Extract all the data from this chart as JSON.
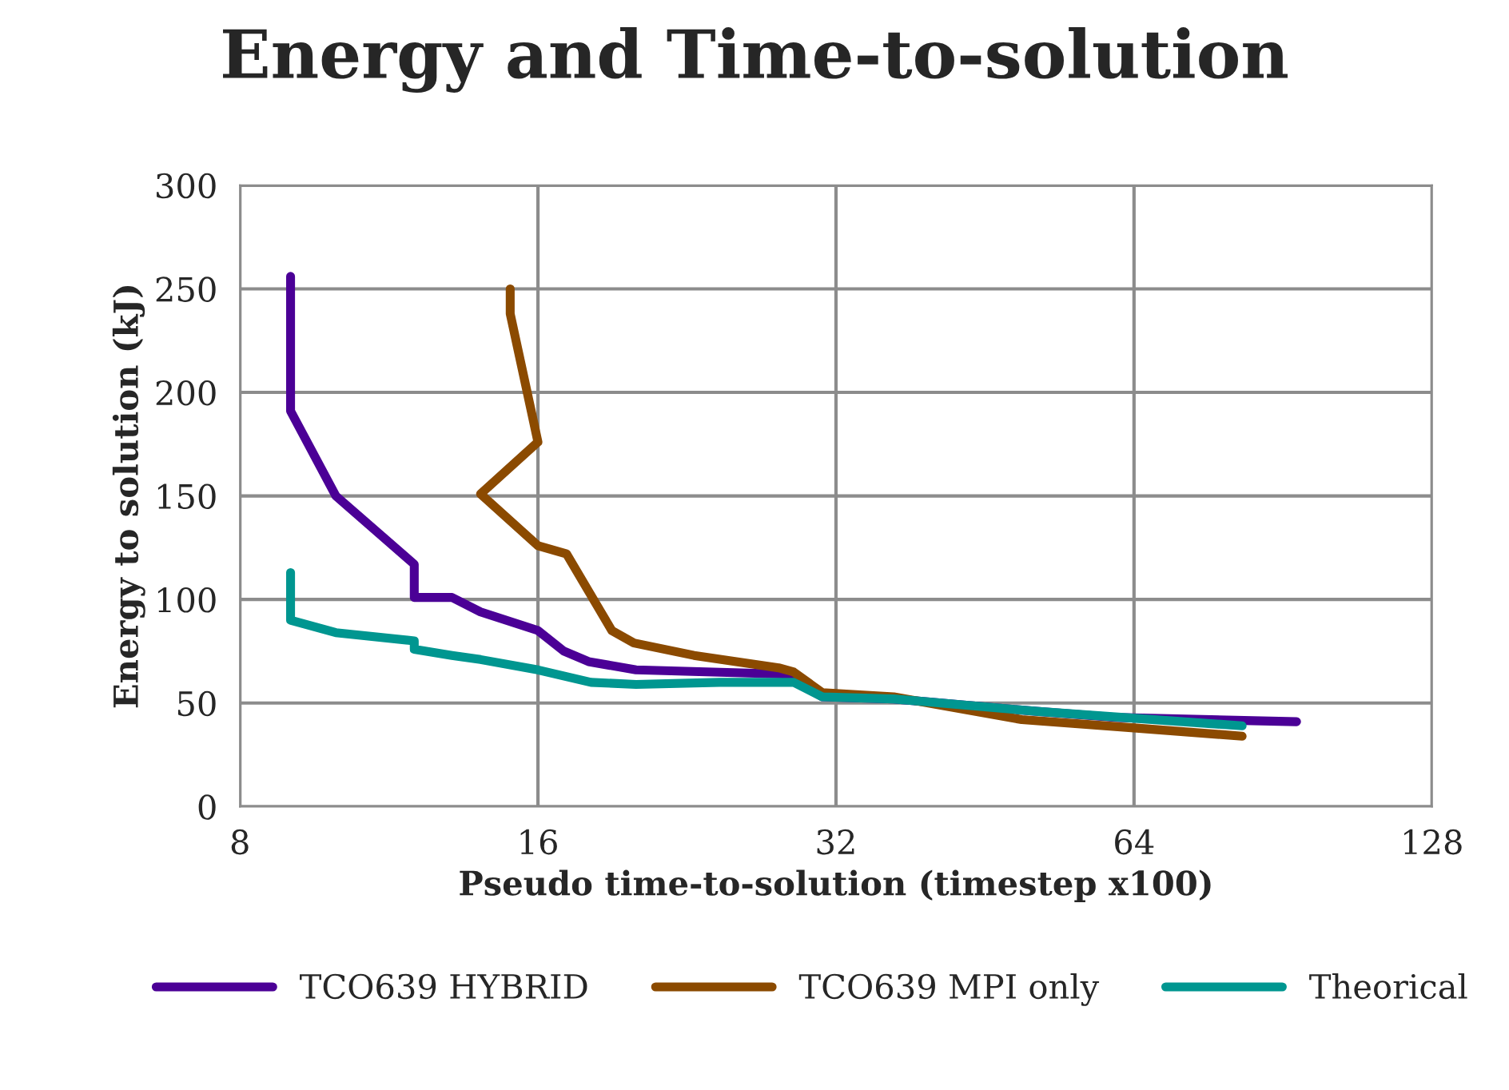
{
  "chart_data": {
    "type": "line",
    "title": "Energy and Time-to-solution",
    "xlabel": "Pseudo time-to-solution (timestep x100)",
    "ylabel": "Energy to solution (kJ)",
    "log": "x",
    "xlim": [
      8,
      128
    ],
    "xticks": [
      8,
      16,
      32,
      64,
      128
    ],
    "ylim": [
      0,
      300
    ],
    "yticks": [
      0,
      50,
      100,
      150,
      200,
      250,
      300
    ],
    "grid": true,
    "legend": "bottom",
    "marker": "none",
    "line_style": "solid",
    "series": [
      {
        "name": "TCO639 HYBRID",
        "color": "#4b0096",
        "x": [
          9.0,
          9.0,
          10.0,
          12.0,
          12.0,
          13.1,
          14.0,
          16.0,
          17.0,
          18.0,
          20.1,
          28.3,
          31.0,
          36.6,
          51.0,
          61.6,
          93.4
        ],
        "values": [
          256,
          191,
          150,
          117,
          101,
          101,
          94,
          85,
          75,
          70,
          66,
          64,
          53,
          52,
          46,
          43,
          41
        ]
      },
      {
        "name": "TCO639 MPI only",
        "color": "#8b4a00",
        "x": [
          15.0,
          15.0,
          16.0,
          14.0,
          16.0,
          17.1,
          19.0,
          20.0,
          23.0,
          28.0,
          29.0,
          31.0,
          36.6,
          49.3,
          64.0,
          82.3
        ],
        "values": [
          250,
          238,
          176,
          151,
          126,
          122,
          85,
          79,
          73,
          67,
          65,
          55,
          53,
          42,
          38,
          34
        ]
      },
      {
        "name": "Theorical",
        "color": "#009690",
        "x": [
          9.0,
          9.0,
          10.0,
          12.0,
          12.0,
          13.1,
          14.0,
          16.0,
          18.1,
          20.1,
          24.4,
          29.0,
          31.0,
          36.6,
          51.0,
          82.3
        ],
        "values": [
          113,
          90,
          84,
          80,
          76,
          73,
          71,
          66,
          60,
          59,
          60,
          60,
          53,
          52,
          46,
          39
        ]
      }
    ]
  }
}
